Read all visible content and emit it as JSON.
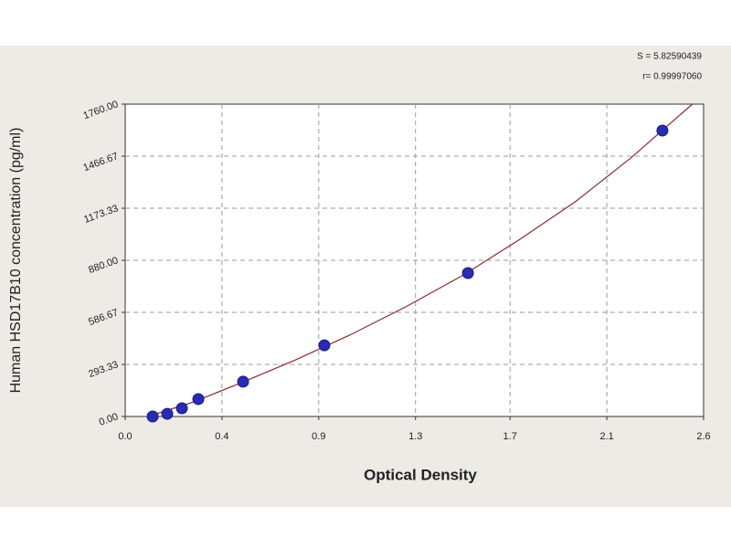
{
  "chart_data": {
    "type": "scatter",
    "x_label": "Optical Density",
    "y_label": "Human HSD17B10 concentration (pg/ml)",
    "annotations": [
      "S = 5.82590439",
      "r= 0.99997060"
    ],
    "x": [
      0.122,
      0.187,
      0.252,
      0.325,
      0.524,
      0.885,
      1.523,
      2.387
    ],
    "values": [
      0,
      15,
      46,
      98,
      196,
      401,
      808,
      1611
    ],
    "color": "#2a2ab8",
    "fit": {
      "x": [
        0.1,
        0.3,
        0.5,
        0.75,
        1.0,
        1.25,
        1.5,
        1.75,
        2.0,
        2.25,
        2.52
      ],
      "values": [
        0,
        80,
        182,
        315,
        460,
        620,
        795,
        995,
        1210,
        1460,
        1760
      ],
      "color": "#8b2a2a"
    },
    "xlim": [
      0,
      2.57
    ],
    "ylim": [
      0,
      1760
    ],
    "xticks": [
      {
        "value": 0,
        "label": "0.0"
      },
      {
        "value": 0.43,
        "label": "0.4"
      },
      {
        "value": 0.86,
        "label": "0.9"
      },
      {
        "value": 1.29,
        "label": "1.3"
      },
      {
        "value": 1.71,
        "label": "1.7"
      },
      {
        "value": 2.14,
        "label": "2.1"
      },
      {
        "value": 2.57,
        "label": "2.6"
      }
    ],
    "yticks": [
      {
        "value": 0,
        "label": "0.00"
      },
      {
        "value": 293.33,
        "label": "293.33"
      },
      {
        "value": 586.67,
        "label": "586.67"
      },
      {
        "value": 880,
        "label": "880.00"
      },
      {
        "value": 1173.33,
        "label": "1173.33"
      },
      {
        "value": 1466.67,
        "label": "1466.67"
      },
      {
        "value": 1760,
        "label": "1760.00"
      }
    ],
    "grid": true
  }
}
